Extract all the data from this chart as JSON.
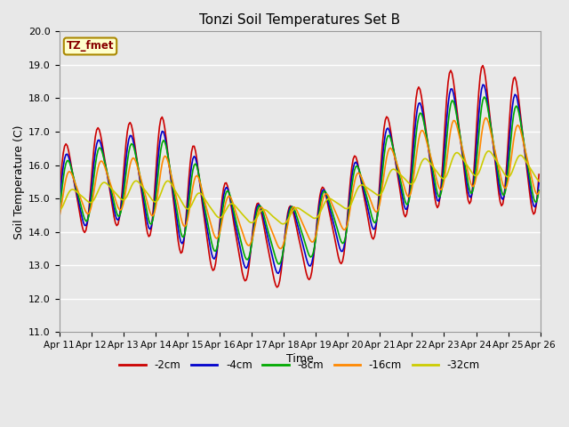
{
  "title": "Tonzi Soil Temperatures Set B",
  "xlabel": "Time",
  "ylabel": "Soil Temperature (C)",
  "ylim": [
    11.0,
    20.0
  ],
  "yticks": [
    11.0,
    12.0,
    13.0,
    14.0,
    15.0,
    16.0,
    17.0,
    18.0,
    19.0,
    20.0
  ],
  "xtick_labels": [
    "Apr 11",
    "Apr 12",
    "Apr 13",
    "Apr 14",
    "Apr 15",
    "Apr 16",
    "Apr 17",
    "Apr 18",
    "Apr 19",
    "Apr 20",
    "Apr 21",
    "Apr 22",
    "Apr 23",
    "Apr 24",
    "Apr 25",
    "Apr 26"
  ],
  "label_box_text": "TZ_fmet",
  "label_box_color": "#ffffcc",
  "label_box_border": "#aa8800",
  "label_text_color": "#880000",
  "background_color": "#e8e8e8",
  "plot_bg_color": "#e8e8e8",
  "series": [
    {
      "label": "-2cm",
      "color": "#cc0000",
      "depth_factor": 1.0,
      "phase_lag": 0.0
    },
    {
      "label": "-4cm",
      "color": "#0000cc",
      "depth_factor": 0.82,
      "phase_lag": 0.15
    },
    {
      "label": "-8cm",
      "color": "#00aa00",
      "depth_factor": 0.7,
      "phase_lag": 0.35
    },
    {
      "label": "-16cm",
      "color": "#ff8800",
      "depth_factor": 0.5,
      "phase_lag": 0.65
    },
    {
      "label": "-32cm",
      "color": "#cccc00",
      "depth_factor": 0.18,
      "phase_lag": 1.2
    }
  ]
}
